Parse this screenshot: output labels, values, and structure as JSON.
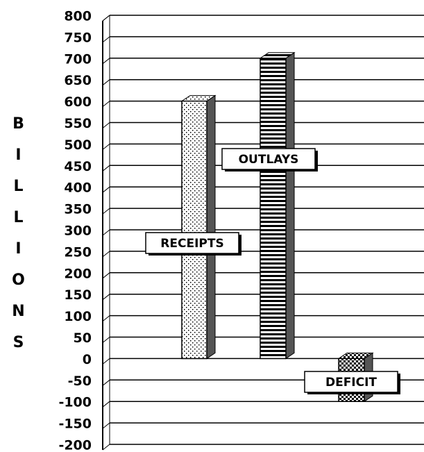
{
  "chart_data": {
    "type": "bar3d",
    "y_label": "BILLIONS",
    "categories": [
      "RECEIPTS",
      "OUTLAYS",
      "DEFICIT"
    ],
    "values": [
      600,
      700,
      -100
    ],
    "ylim": [
      -200,
      800
    ],
    "yticks": [
      -200,
      -150,
      -100,
      -50,
      0,
      50,
      100,
      150,
      200,
      250,
      300,
      350,
      400,
      450,
      500,
      550,
      600,
      650,
      700,
      750,
      800
    ],
    "grid": true
  }
}
